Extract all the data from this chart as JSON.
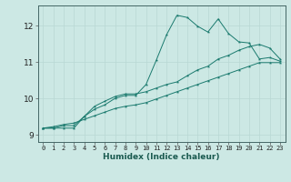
{
  "xlabel": "Humidex (Indice chaleur)",
  "bg_color": "#cce8e4",
  "line_color": "#1a7a6e",
  "xlim": [
    -0.5,
    23.5
  ],
  "ylim": [
    8.8,
    12.55
  ],
  "x_ticks": [
    0,
    1,
    2,
    3,
    4,
    5,
    6,
    7,
    8,
    9,
    10,
    11,
    12,
    13,
    14,
    15,
    16,
    17,
    18,
    19,
    20,
    21,
    22,
    23
  ],
  "y_ticks": [
    9,
    10,
    11,
    12
  ],
  "series1_x": [
    0,
    1,
    2,
    3,
    4,
    5,
    6,
    7,
    8,
    9,
    10,
    11,
    12,
    13,
    14,
    15,
    16,
    17,
    18,
    19,
    20,
    21,
    22,
    23
  ],
  "series1_y": [
    9.18,
    9.18,
    9.18,
    9.18,
    9.5,
    9.7,
    9.82,
    10.0,
    10.08,
    10.08,
    10.38,
    11.05,
    11.75,
    12.28,
    12.22,
    11.98,
    11.82,
    12.18,
    11.78,
    11.55,
    11.52,
    11.08,
    11.12,
    11.02
  ],
  "series2_x": [
    0,
    1,
    2,
    3,
    4,
    5,
    6,
    7,
    8,
    9,
    10,
    11,
    12,
    13,
    14,
    15,
    16,
    17,
    18,
    19,
    20,
    21,
    22,
    23
  ],
  "series2_y": [
    9.18,
    9.18,
    9.25,
    9.25,
    9.5,
    9.78,
    9.92,
    10.05,
    10.12,
    10.12,
    10.18,
    10.28,
    10.38,
    10.45,
    10.62,
    10.78,
    10.88,
    11.08,
    11.18,
    11.32,
    11.42,
    11.48,
    11.38,
    11.08
  ],
  "series3_x": [
    0,
    1,
    2,
    3,
    4,
    5,
    6,
    7,
    8,
    9,
    10,
    11,
    12,
    13,
    14,
    15,
    16,
    17,
    18,
    19,
    20,
    21,
    22,
    23
  ],
  "series3_y": [
    9.18,
    9.22,
    9.28,
    9.32,
    9.42,
    9.52,
    9.62,
    9.72,
    9.78,
    9.82,
    9.88,
    9.98,
    10.08,
    10.18,
    10.28,
    10.38,
    10.48,
    10.58,
    10.68,
    10.78,
    10.88,
    10.98,
    10.98,
    10.98
  ]
}
